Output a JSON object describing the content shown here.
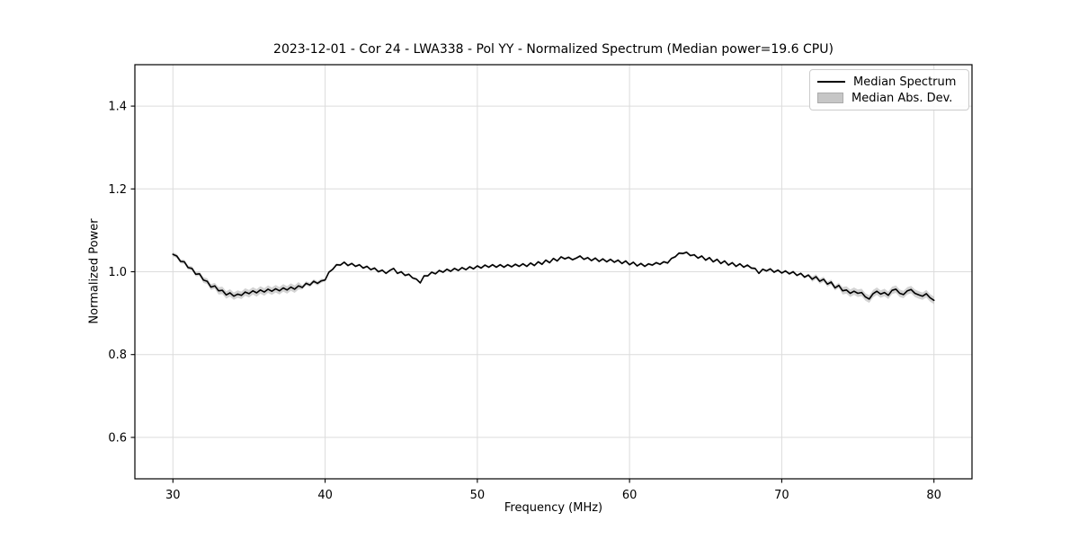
{
  "page": {
    "background": "#ffffff"
  },
  "chart_data": {
    "type": "line",
    "title": "2023-12-01 - Cor 24 - LWA338 - Pol YY - Normalized Spectrum (Median power=19.6 CPU)",
    "xlabel": "Frequency (MHz)",
    "ylabel": "Normalized Power",
    "xlim": [
      27.5,
      82.5
    ],
    "ylim": [
      0.5,
      1.5
    ],
    "xticks": [
      30,
      40,
      50,
      60,
      70,
      80
    ],
    "yticks": [
      0.6,
      0.8,
      1.0,
      1.2,
      1.4
    ],
    "grid": true,
    "legend": {
      "position": "upper right",
      "entries": [
        {
          "label": "Median Spectrum",
          "type": "line"
        },
        {
          "label": "Median Abs. Dev.",
          "type": "patch"
        }
      ]
    },
    "colors": {
      "line": "#000000",
      "band": "#9e9e9e",
      "band_opacity": 0.45,
      "grid": "#dcdcdc",
      "spine": "#000000",
      "legend_border": "#cccccc",
      "legend_patch_fill": "#c6c6c6"
    },
    "series": [
      {
        "name": "Median Spectrum",
        "x_start": 30.0,
        "x_step": 0.25,
        "y": [
          1.042,
          1.038,
          1.025,
          1.024,
          1.01,
          1.008,
          0.994,
          0.995,
          0.98,
          0.977,
          0.963,
          0.966,
          0.954,
          0.955,
          0.944,
          0.949,
          0.941,
          0.946,
          0.943,
          0.951,
          0.947,
          0.954,
          0.949,
          0.956,
          0.951,
          0.958,
          0.953,
          0.959,
          0.954,
          0.961,
          0.956,
          0.963,
          0.958,
          0.966,
          0.962,
          0.972,
          0.968,
          0.977,
          0.972,
          0.978,
          0.98,
          0.999,
          1.006,
          1.017,
          1.016,
          1.023,
          1.015,
          1.02,
          1.013,
          1.017,
          1.009,
          1.013,
          1.005,
          1.009,
          1.0,
          1.004,
          0.996,
          1.003,
          1.008,
          0.996,
          1.0,
          0.991,
          0.994,
          0.985,
          0.982,
          0.973,
          0.99,
          0.99,
          0.999,
          0.995,
          1.003,
          0.999,
          1.006,
          1.001,
          1.008,
          1.003,
          1.01,
          1.005,
          1.012,
          1.007,
          1.014,
          1.009,
          1.016,
          1.011,
          1.017,
          1.011,
          1.017,
          1.011,
          1.017,
          1.012,
          1.018,
          1.013,
          1.019,
          1.013,
          1.021,
          1.015,
          1.024,
          1.018,
          1.028,
          1.022,
          1.032,
          1.026,
          1.036,
          1.031,
          1.035,
          1.029,
          1.033,
          1.038,
          1.03,
          1.034,
          1.027,
          1.033,
          1.025,
          1.031,
          1.024,
          1.03,
          1.023,
          1.028,
          1.02,
          1.026,
          1.017,
          1.023,
          1.014,
          1.02,
          1.013,
          1.019,
          1.016,
          1.022,
          1.018,
          1.024,
          1.021,
          1.032,
          1.036,
          1.045,
          1.044,
          1.047,
          1.039,
          1.041,
          1.033,
          1.038,
          1.028,
          1.034,
          1.024,
          1.03,
          1.02,
          1.026,
          1.016,
          1.022,
          1.013,
          1.019,
          1.011,
          1.016,
          1.009,
          1.008,
          0.996,
          1.006,
          1.002,
          1.007,
          0.999,
          1.004,
          0.997,
          1.002,
          0.995,
          1.0,
          0.991,
          0.996,
          0.987,
          0.992,
          0.982,
          0.988,
          0.977,
          0.982,
          0.97,
          0.975,
          0.961,
          0.967,
          0.954,
          0.956,
          0.948,
          0.953,
          0.948,
          0.95,
          0.939,
          0.934,
          0.947,
          0.953,
          0.946,
          0.95,
          0.943,
          0.955,
          0.958,
          0.948,
          0.945,
          0.954,
          0.957,
          0.948,
          0.944,
          0.941,
          0.947,
          0.937,
          0.931
        ]
      }
    ],
    "band": {
      "name": "Median Abs. Dev.",
      "halfwidth_segments": [
        {
          "from": 30.0,
          "to": 32.0,
          "hw": 0.005
        },
        {
          "from": 32.0,
          "to": 33.0,
          "hw": 0.007
        },
        {
          "from": 33.0,
          "to": 38.5,
          "hw": 0.009
        },
        {
          "from": 38.5,
          "to": 40.0,
          "hw": 0.005
        },
        {
          "from": 40.0,
          "to": 72.0,
          "hw": 0.003
        },
        {
          "from": 72.0,
          "to": 74.0,
          "hw": 0.006
        },
        {
          "from": 74.0,
          "to": 80.01,
          "hw": 0.009
        }
      ]
    }
  }
}
